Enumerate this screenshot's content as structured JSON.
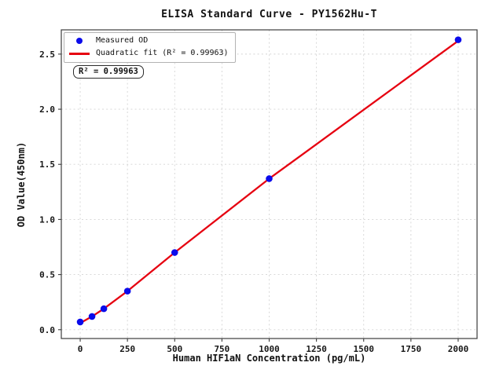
{
  "colors": {
    "background": "#ffffff",
    "grid": "#d4d4d4",
    "spine": "#3c3c3c",
    "tick_text": "#161616",
    "scatter_blue": "#0b0beb",
    "fit_red": "#e60010"
  },
  "chart_data": {
    "type": "scatter",
    "title": "ELISA Standard Curve - PY1562Hu-T",
    "xlabel": "Human HIF1aN Concentration (pg/mL)",
    "ylabel": "OD Value(450nm)",
    "xlim": [
      -100,
      2100
    ],
    "ylim": [
      -0.08,
      2.72
    ],
    "xticks": [
      0,
      250,
      500,
      750,
      1000,
      1250,
      1500,
      1750,
      2000
    ],
    "xtick_labels": [
      "0",
      "250",
      "500",
      "750",
      "1000",
      "1250",
      "1500",
      "1750",
      "2000"
    ],
    "yticks": [
      0,
      0.5,
      1.0,
      1.5,
      2.0,
      2.5
    ],
    "ytick_labels": [
      "0.0",
      "0.5",
      "1.0",
      "1.5",
      "2.0",
      "2.5"
    ],
    "grid": true,
    "legend_position": "upper left",
    "annotation": "R² = 0.99963",
    "r_squared": 0.99963,
    "series": [
      {
        "name": "Measured OD",
        "type": "scatter",
        "marker": "circle",
        "color": "#0b0beb",
        "x": [
          0,
          62.5,
          125,
          250,
          500,
          1000,
          2000
        ],
        "y": [
          0.07,
          0.12,
          0.19,
          0.35,
          0.7,
          1.37,
          2.63
        ]
      },
      {
        "name": "Quadratic fit (R² = 0.99963)",
        "type": "line",
        "color": "#e60010",
        "x": [
          0,
          62.5,
          125,
          250,
          500,
          1000,
          2000
        ],
        "y": [
          0.06,
          0.12,
          0.19,
          0.35,
          0.7,
          1.37,
          2.62
        ]
      }
    ]
  }
}
